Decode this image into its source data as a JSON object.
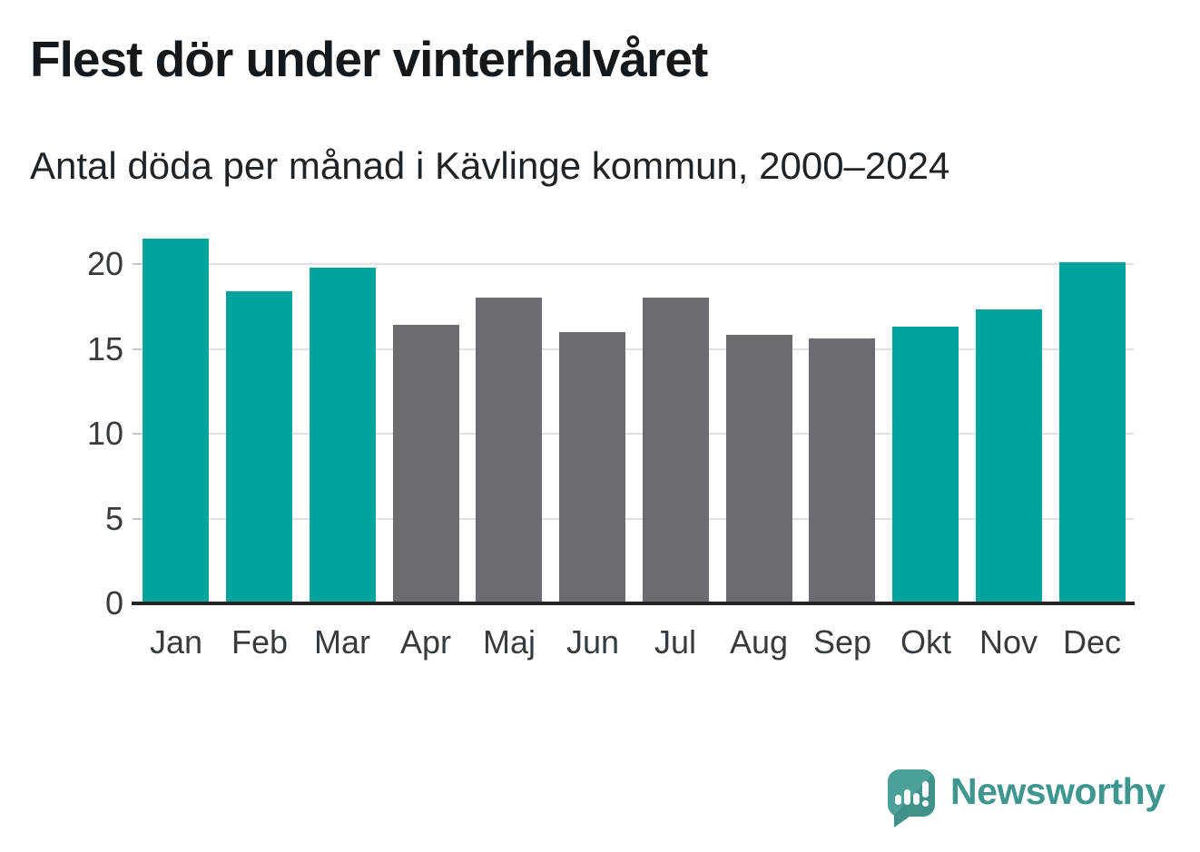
{
  "header": {
    "title": "Flest dör under vinterhalvåret",
    "subtitle": "Antal döda per månad i Kävlinge kommun, 2000–2024"
  },
  "branding": {
    "logo_text": "Newsworthy",
    "logo_text_color": "#3e968f",
    "logo_mark_color": "#459a93",
    "logo_mark_icon": "speech-bubble-with-bar-chart-and-exclamation"
  },
  "chart_data": {
    "type": "bar",
    "title": "Flest dör under vinterhalvåret",
    "subtitle": "Antal döda per månad i Kävlinge kommun, 2000–2024",
    "xlabel": "",
    "ylabel": "",
    "categories": [
      "Jan",
      "Feb",
      "Mar",
      "Apr",
      "Maj",
      "Jun",
      "Jul",
      "Aug",
      "Sep",
      "Okt",
      "Nov",
      "Dec"
    ],
    "values": [
      21.4,
      18.3,
      19.7,
      16.3,
      17.9,
      15.9,
      17.9,
      15.7,
      15.5,
      16.2,
      17.2,
      20.0
    ],
    "highlighted": [
      true,
      true,
      true,
      false,
      false,
      false,
      false,
      false,
      false,
      true,
      true,
      true
    ],
    "colors": {
      "highlight": "#00a49c",
      "default": "#6c6c71",
      "gridline": "#e1e1e1",
      "axis": "#222426",
      "tick_label": "#383b3d"
    },
    "yticks": [
      0,
      5,
      10,
      15,
      20
    ],
    "ylim": [
      0,
      22
    ],
    "grid": true,
    "legend": "none"
  }
}
